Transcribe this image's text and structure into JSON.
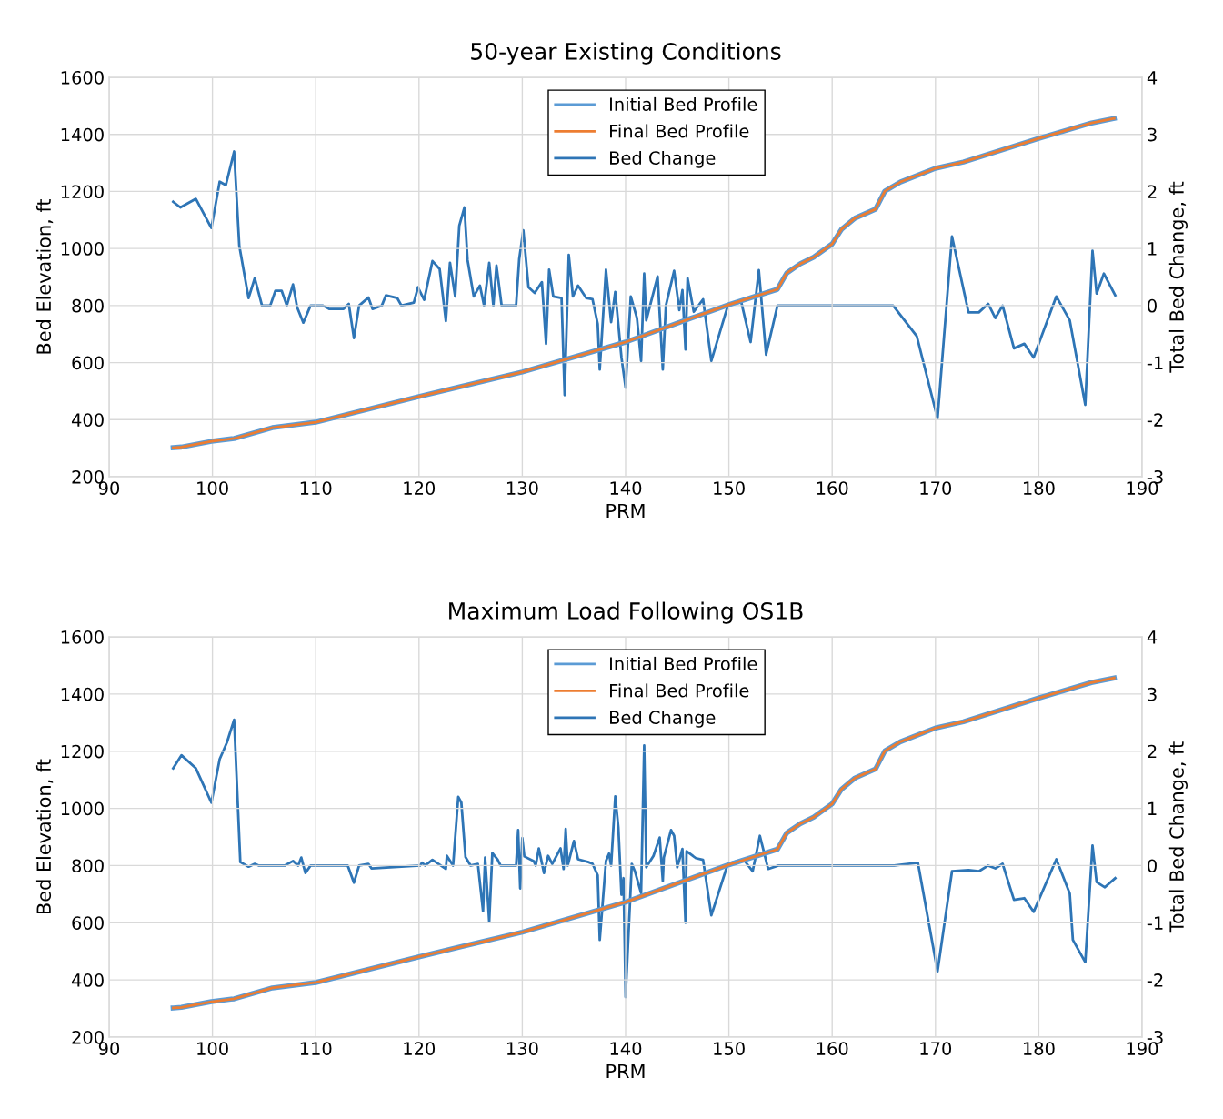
{
  "chart_data": [
    {
      "type": "line",
      "title": "50-year Existing Conditions",
      "xlabel": "PRM",
      "ylabel": "Bed Elevation, ft",
      "y2label": "Total Bed Change, ft",
      "xlim": [
        90,
        190
      ],
      "xticks": [
        90,
        100,
        110,
        120,
        130,
        140,
        150,
        160,
        170,
        180,
        190
      ],
      "ylim": [
        200,
        1600
      ],
      "yticks": [
        200,
        400,
        600,
        800,
        1000,
        1200,
        1400,
        1600
      ],
      "y2lim": [
        -3,
        4
      ],
      "y2ticks": [
        -3,
        -2,
        -1,
        0,
        1,
        2,
        3,
        4
      ],
      "grid": true,
      "legend": "top",
      "marker": "none",
      "line_style": "solid",
      "series": [
        {
          "name": "Initial Bed Profile",
          "color": "#5b9bd5",
          "x": [
            96.2,
            97,
            99.9,
            102.1,
            105.8,
            110,
            120,
            130,
            140,
            146.3,
            150,
            154.7,
            155.6,
            156.9,
            158.2,
            160,
            160.9,
            162.2,
            164.2,
            165.1,
            166.6,
            170,
            172.7,
            180,
            185.1,
            187.3
          ],
          "values": [
            302,
            304,
            324,
            334,
            372,
            391,
            481,
            567,
            672,
            755,
            803,
            857,
            914,
            946,
            969,
            1016,
            1067,
            1106,
            1138,
            1201,
            1233,
            1281,
            1303,
            1386,
            1440,
            1456
          ]
        },
        {
          "name": "Final Bed Profile",
          "color": "#ed7d31",
          "x": [
            96.2,
            97,
            99.9,
            102.1,
            105.8,
            110,
            120,
            130,
            140,
            146.3,
            150,
            154.7,
            155.6,
            156.9,
            158.2,
            160,
            160.9,
            162.2,
            164.2,
            165.1,
            166.6,
            170,
            172.7,
            180,
            185.1,
            187.3
          ],
          "values": [
            302,
            304,
            324,
            334,
            372,
            391,
            481,
            567,
            672,
            755,
            803,
            857,
            914,
            946,
            969,
            1016,
            1067,
            1106,
            1138,
            1201,
            1233,
            1281,
            1303,
            1386,
            1440,
            1456
          ]
        },
        {
          "name": "Bed Change",
          "color": "#2e75b6",
          "axis": "y2",
          "x": [
            96.2,
            96.9,
            98.4,
            99.9,
            100.7,
            101.3,
            102.1,
            102.6,
            103.5,
            104.1,
            104.8,
            105.6,
            106.1,
            106.7,
            107.2,
            107.8,
            108.2,
            108.8,
            109.5,
            110.7,
            111.3,
            112.7,
            113.2,
            113.7,
            114.2,
            115.1,
            115.5,
            116.4,
            116.8,
            117.9,
            118.3,
            119.5,
            119.9,
            120.5,
            121.3,
            122.0,
            122.6,
            123.0,
            123.5,
            123.9,
            124.4,
            124.7,
            125.3,
            125.9,
            126.3,
            126.8,
            127.2,
            127.5,
            128.0,
            129.4,
            129.7,
            130.1,
            130.6,
            131.2,
            131.9,
            132.3,
            132.6,
            133.0,
            133.8,
            134.1,
            134.5,
            134.9,
            135.4,
            136.2,
            136.8,
            137.3,
            137.5,
            138.1,
            138.6,
            139.0,
            139.6,
            140.0,
            140.5,
            141.1,
            141.5,
            141.8,
            142.0,
            143.1,
            143.6,
            143.9,
            144.7,
            145.2,
            145.5,
            145.8,
            146.0,
            146.6,
            147.5,
            148.3,
            149.9,
            151.2,
            152.1,
            152.9,
            153.6,
            154.7,
            165.9,
            168.2,
            170.2,
            171.6,
            173.2,
            174.2,
            175.1,
            175.8,
            176.5,
            177.6,
            178.6,
            179.5,
            181.7,
            183.0,
            184.5,
            185.2,
            185.6,
            186.3,
            187.4
          ],
          "values": [
            1.82,
            1.72,
            1.87,
            1.36,
            2.17,
            2.11,
            2.7,
            1.05,
            0.13,
            0.48,
            0,
            0,
            0.26,
            0.26,
            0,
            0.37,
            -0.03,
            -0.3,
            0,
            0,
            -0.06,
            -0.06,
            0.03,
            -0.57,
            0,
            0.14,
            -0.06,
            0,
            0.18,
            0.13,
            0,
            0.05,
            0.32,
            0.1,
            0.78,
            0.64,
            -0.27,
            0.75,
            0.16,
            1.4,
            1.72,
            0.8,
            0.16,
            0.35,
            0,
            0.75,
            0,
            0.7,
            0,
            0,
            0.81,
            1.32,
            0.32,
            0.22,
            0.41,
            -0.67,
            0.63,
            0.16,
            0.13,
            -1.57,
            0.89,
            0.16,
            0.35,
            0.13,
            0.11,
            -0.32,
            -1.12,
            0.63,
            -0.29,
            0.24,
            -0.91,
            -1.44,
            0.16,
            -0.22,
            -0.97,
            0.56,
            -0.26,
            0.51,
            -1.12,
            0,
            0.61,
            -0.08,
            0.27,
            -0.77,
            0.48,
            -0.11,
            0.11,
            -0.97,
            0,
            0.06,
            -0.64,
            0.62,
            -0.86,
            0,
            0,
            -0.54,
            -1.98,
            1.21,
            -0.12,
            -0.12,
            0.03,
            -0.22,
            0,
            -0.75,
            -0.67,
            -0.91,
            0.16,
            -0.26,
            -1.74,
            0.96,
            0.21,
            0.56,
            0.18
          ]
        }
      ]
    },
    {
      "type": "line",
      "title": "Maximum Load Following OS1B",
      "xlabel": "PRM",
      "ylabel": "Bed Elevation, ft",
      "y2label": "Total Bed Change, ft",
      "xlim": [
        90,
        190
      ],
      "xticks": [
        90,
        100,
        110,
        120,
        130,
        140,
        150,
        160,
        170,
        180,
        190
      ],
      "ylim": [
        200,
        1600
      ],
      "yticks": [
        200,
        400,
        600,
        800,
        1000,
        1200,
        1400,
        1600
      ],
      "y2lim": [
        -3,
        4
      ],
      "y2ticks": [
        -3,
        -2,
        -1,
        0,
        1,
        2,
        3,
        4
      ],
      "grid": true,
      "legend": "top",
      "marker": "none",
      "line_style": "solid",
      "series": [
        {
          "name": "Initial Bed Profile",
          "color": "#5b9bd5",
          "x": [
            96.2,
            97,
            99.9,
            102.1,
            105.8,
            110,
            120,
            130,
            140,
            146.3,
            150,
            154.7,
            155.6,
            156.9,
            158.2,
            160,
            160.9,
            162.2,
            164.2,
            165.1,
            166.6,
            170,
            172.7,
            180,
            185.1,
            187.3
          ],
          "values": [
            302,
            304,
            324,
            334,
            372,
            391,
            481,
            567,
            672,
            755,
            803,
            857,
            914,
            946,
            969,
            1016,
            1067,
            1106,
            1138,
            1201,
            1233,
            1281,
            1303,
            1386,
            1440,
            1456
          ]
        },
        {
          "name": "Final Bed Profile",
          "color": "#ed7d31",
          "x": [
            96.2,
            97,
            99.9,
            102.1,
            105.8,
            110,
            120,
            130,
            140,
            146.3,
            150,
            154.7,
            155.6,
            156.9,
            158.2,
            160,
            160.9,
            162.2,
            164.2,
            165.1,
            166.6,
            170,
            172.7,
            180,
            185.1,
            187.3
          ],
          "values": [
            302,
            304,
            324,
            334,
            372,
            391,
            481,
            567,
            672,
            755,
            803,
            857,
            914,
            946,
            969,
            1016,
            1067,
            1106,
            1138,
            1201,
            1233,
            1281,
            1303,
            1386,
            1440,
            1456
          ]
        },
        {
          "name": "Bed Change",
          "color": "#2e75b6",
          "axis": "y2",
          "x": [
            96.2,
            97.0,
            98.4,
            99.9,
            100.7,
            101.4,
            102.1,
            102.7,
            103.5,
            104.1,
            104.5,
            107.0,
            107.8,
            108.3,
            108.6,
            109.0,
            109.5,
            113.1,
            113.7,
            114.2,
            115.1,
            115.4,
            120.1,
            120.3,
            120.6,
            121.3,
            122.6,
            122.7,
            123.3,
            123.8,
            124.1,
            124.5,
            125.0,
            125.7,
            126.2,
            126.4,
            126.8,
            127.1,
            127.6,
            127.9,
            129.4,
            129.6,
            129.8,
            130.0,
            130.2,
            131.1,
            131.3,
            131.6,
            132.1,
            132.5,
            132.9,
            133.7,
            134.0,
            134.2,
            134.4,
            135.0,
            135.4,
            136.4,
            136.8,
            137.3,
            137.5,
            138.1,
            138.4,
            138.6,
            139.0,
            139.3,
            139.6,
            139.8,
            140.0,
            140.6,
            140.9,
            141.5,
            141.8,
            142.0,
            142.7,
            143.3,
            143.6,
            143.7,
            144.4,
            144.7,
            145.0,
            145.5,
            145.8,
            145.9,
            146.8,
            147.5,
            148.3,
            149.9,
            151.4,
            152.3,
            153.0,
            153.8,
            154.8,
            166.0,
            168.3,
            170.2,
            171.6,
            173.2,
            174.2,
            175.1,
            175.8,
            176.5,
            177.6,
            178.6,
            179.5,
            181.7,
            183.0,
            183.3,
            184.5,
            185.2,
            185.6,
            186.4,
            187.4
          ],
          "values": [
            1.7,
            1.93,
            1.7,
            1.1,
            1.86,
            2.15,
            2.55,
            0.06,
            -0.02,
            0.03,
            0,
            0,
            0.08,
            0,
            0.14,
            -0.13,
            0,
            0,
            -0.3,
            0,
            0.03,
            -0.05,
            0,
            0.05,
            0,
            0.1,
            -0.06,
            0.17,
            0,
            1.2,
            1.1,
            0.15,
            0,
            0.03,
            -0.8,
            0.14,
            -0.98,
            0.22,
            0.11,
            0,
            0,
            0.62,
            -0.4,
            0.48,
            0.16,
            0.08,
            0,
            0.3,
            -0.13,
            0.17,
            0.03,
            0.3,
            -0.06,
            0.64,
            0,
            0.43,
            0.11,
            0.06,
            0.03,
            -0.17,
            -1.3,
            0.08,
            0.21,
            0,
            1.21,
            0.67,
            -0.51,
            -0.22,
            -2.3,
            0.03,
            -0.1,
            -0.48,
            2.1,
            -0.03,
            0.17,
            0.49,
            -0.27,
            0.14,
            0.62,
            0.52,
            -0.03,
            0.29,
            -1.0,
            0.25,
            0.13,
            0.1,
            -0.87,
            0.03,
            0.11,
            -0.1,
            0.52,
            -0.06,
            0,
            0,
            0.05,
            -1.85,
            -0.1,
            -0.08,
            -0.1,
            0,
            -0.05,
            0.03,
            -0.6,
            -0.57,
            -0.81,
            0.11,
            -0.49,
            -1.3,
            -1.69,
            0.35,
            -0.29,
            -0.38,
            -0.22
          ]
        }
      ]
    }
  ]
}
